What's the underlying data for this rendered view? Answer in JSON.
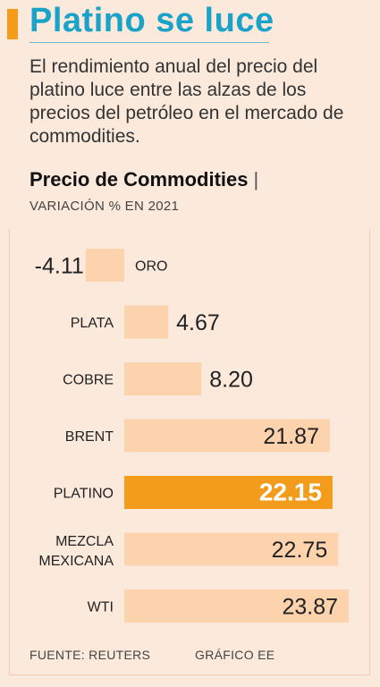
{
  "headline": "Platino se luce",
  "subtitle": "El rendimiento anual del precio del platino luce entre las alzas de los precios del petróleo en el mercado de commodities.",
  "chart_data": {
    "type": "bar",
    "orientation": "horizontal",
    "title": "Precio de Commodities",
    "title_separator": "|",
    "subtitle": "VARIACIÓN % EN 2021",
    "categories": [
      "ORO",
      "PLATA",
      "COBRE",
      "BRENT",
      "PLATINO",
      "MEZCLA\nMEXICANA",
      "WTI"
    ],
    "values": [
      -4.11,
      4.67,
      8.2,
      21.87,
      22.15,
      22.75,
      23.87
    ],
    "value_labels": [
      "-4.11",
      "4.67",
      "8.20",
      "21.87",
      "22.15",
      "22.75",
      "23.87"
    ],
    "highlight": "PLATINO",
    "xlim": [
      -4.11,
      23.87
    ],
    "grid": false,
    "legend": "none",
    "colors": {
      "bar": "#fdd3ad",
      "highlight": "#f39c1b",
      "highlight_text": "#ffffff",
      "text": "#222222"
    }
  },
  "footer": {
    "source": "FUENTE: REUTERS",
    "credit": "GRÁFICO EE"
  }
}
